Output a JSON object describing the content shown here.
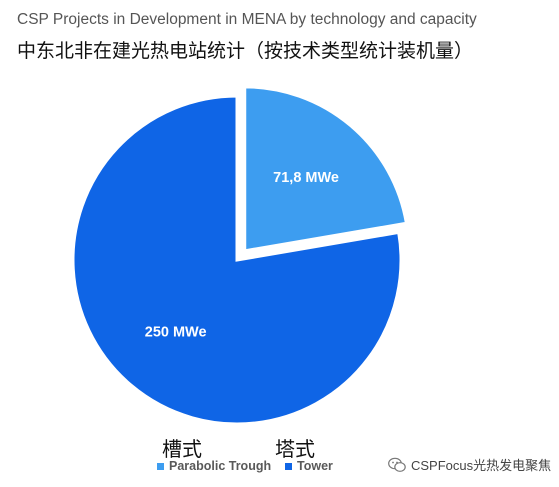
{
  "chart_data": {
    "type": "pie",
    "title": "CSP Projects in Development in MENA by technology and capacity",
    "subtitle": "中东北非在建光热电站统计（按技术类型统计装机量）",
    "series": [
      {
        "name": "Parabolic Trough",
        "value": 71.8,
        "label": "71,8 MWe",
        "color": "#3d9df0",
        "exploded": true
      },
      {
        "name": "Tower",
        "value": 250,
        "label": "250 MWe",
        "color": "#0f65e6",
        "exploded": false
      }
    ],
    "legend_position": "bottom"
  },
  "annotations": {
    "trough_cn": "槽式",
    "tower_cn": "塔式"
  },
  "watermark": {
    "text": "CSPFocus光热发电聚焦",
    "icon": "wechat-icon"
  }
}
